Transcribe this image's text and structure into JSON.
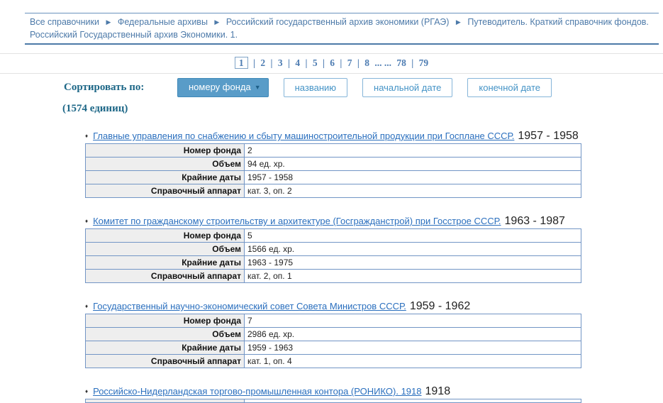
{
  "breadcrumb": {
    "separator": "▶",
    "items": [
      {
        "label": "Все справочники"
      },
      {
        "label": "Федеральные архивы"
      },
      {
        "label": "Российский государственный архив экономики (РГАЭ)"
      },
      {
        "label": "Путеводитель. Краткий справочник фондов. Российский Государственный архив Экономики. 1."
      }
    ]
  },
  "pagination": {
    "separator": "|",
    "ellipsis": "... ...",
    "current": "1",
    "pages": [
      "1",
      "2",
      "3",
      "4",
      "5",
      "6",
      "7",
      "8",
      "78",
      "79"
    ]
  },
  "sort": {
    "label": "Сортировать по:",
    "count_label": "(1574 единиц)",
    "buttons": [
      {
        "label": "номеру фонда",
        "arrow": "▼",
        "active": true
      },
      {
        "label": "названию",
        "active": false
      },
      {
        "label": "начальной дате",
        "active": false
      },
      {
        "label": "конечной дате",
        "active": false
      }
    ]
  },
  "list": {
    "bullet": "♦",
    "row_labels": [
      "Номер фонда",
      "Объем",
      "Крайние даты",
      "Справочный аппарат"
    ],
    "items": [
      {
        "title": "Главные управления по снабжению и сбыту машиностроительной продукции при Госплане СССР.",
        "dates": "1957 - 1958",
        "fond_number": "2",
        "volume": "94 ед. хр.",
        "extreme_dates": "1957 - 1958",
        "reference": "кат. 3, оп. 2"
      },
      {
        "title": "Комитет по гражданскому строительству и архитектуре (Госгражданстрой) при Госстрое СССР.",
        "dates": "1963 - 1987",
        "fond_number": "5",
        "volume": "1566 ед. хр.",
        "extreme_dates": "1963 - 1975",
        "reference": "кат. 2, оп. 1"
      },
      {
        "title": "Государственный научно-экономический совет Совета Министров СССР.",
        "dates": "1959 - 1962",
        "fond_number": "7",
        "volume": "2986 ед. хр.",
        "extreme_dates": "1959 - 1963",
        "reference": "кат. 1, оп. 4"
      },
      {
        "title": "Российско-Нидерландская торгово-промышленная контора (РОНИКО). 1918",
        "dates": "1918"
      }
    ]
  },
  "colors": {
    "breadcrumb_blue": "#4d7aa9",
    "link_blue": "#2a6fbe",
    "accent_teal": "#1d6787",
    "button_active_bg": "#599cc8",
    "button_border": "#85b5d9",
    "table_border": "#7295c5",
    "label_cell_bg": "#eeeeee"
  }
}
